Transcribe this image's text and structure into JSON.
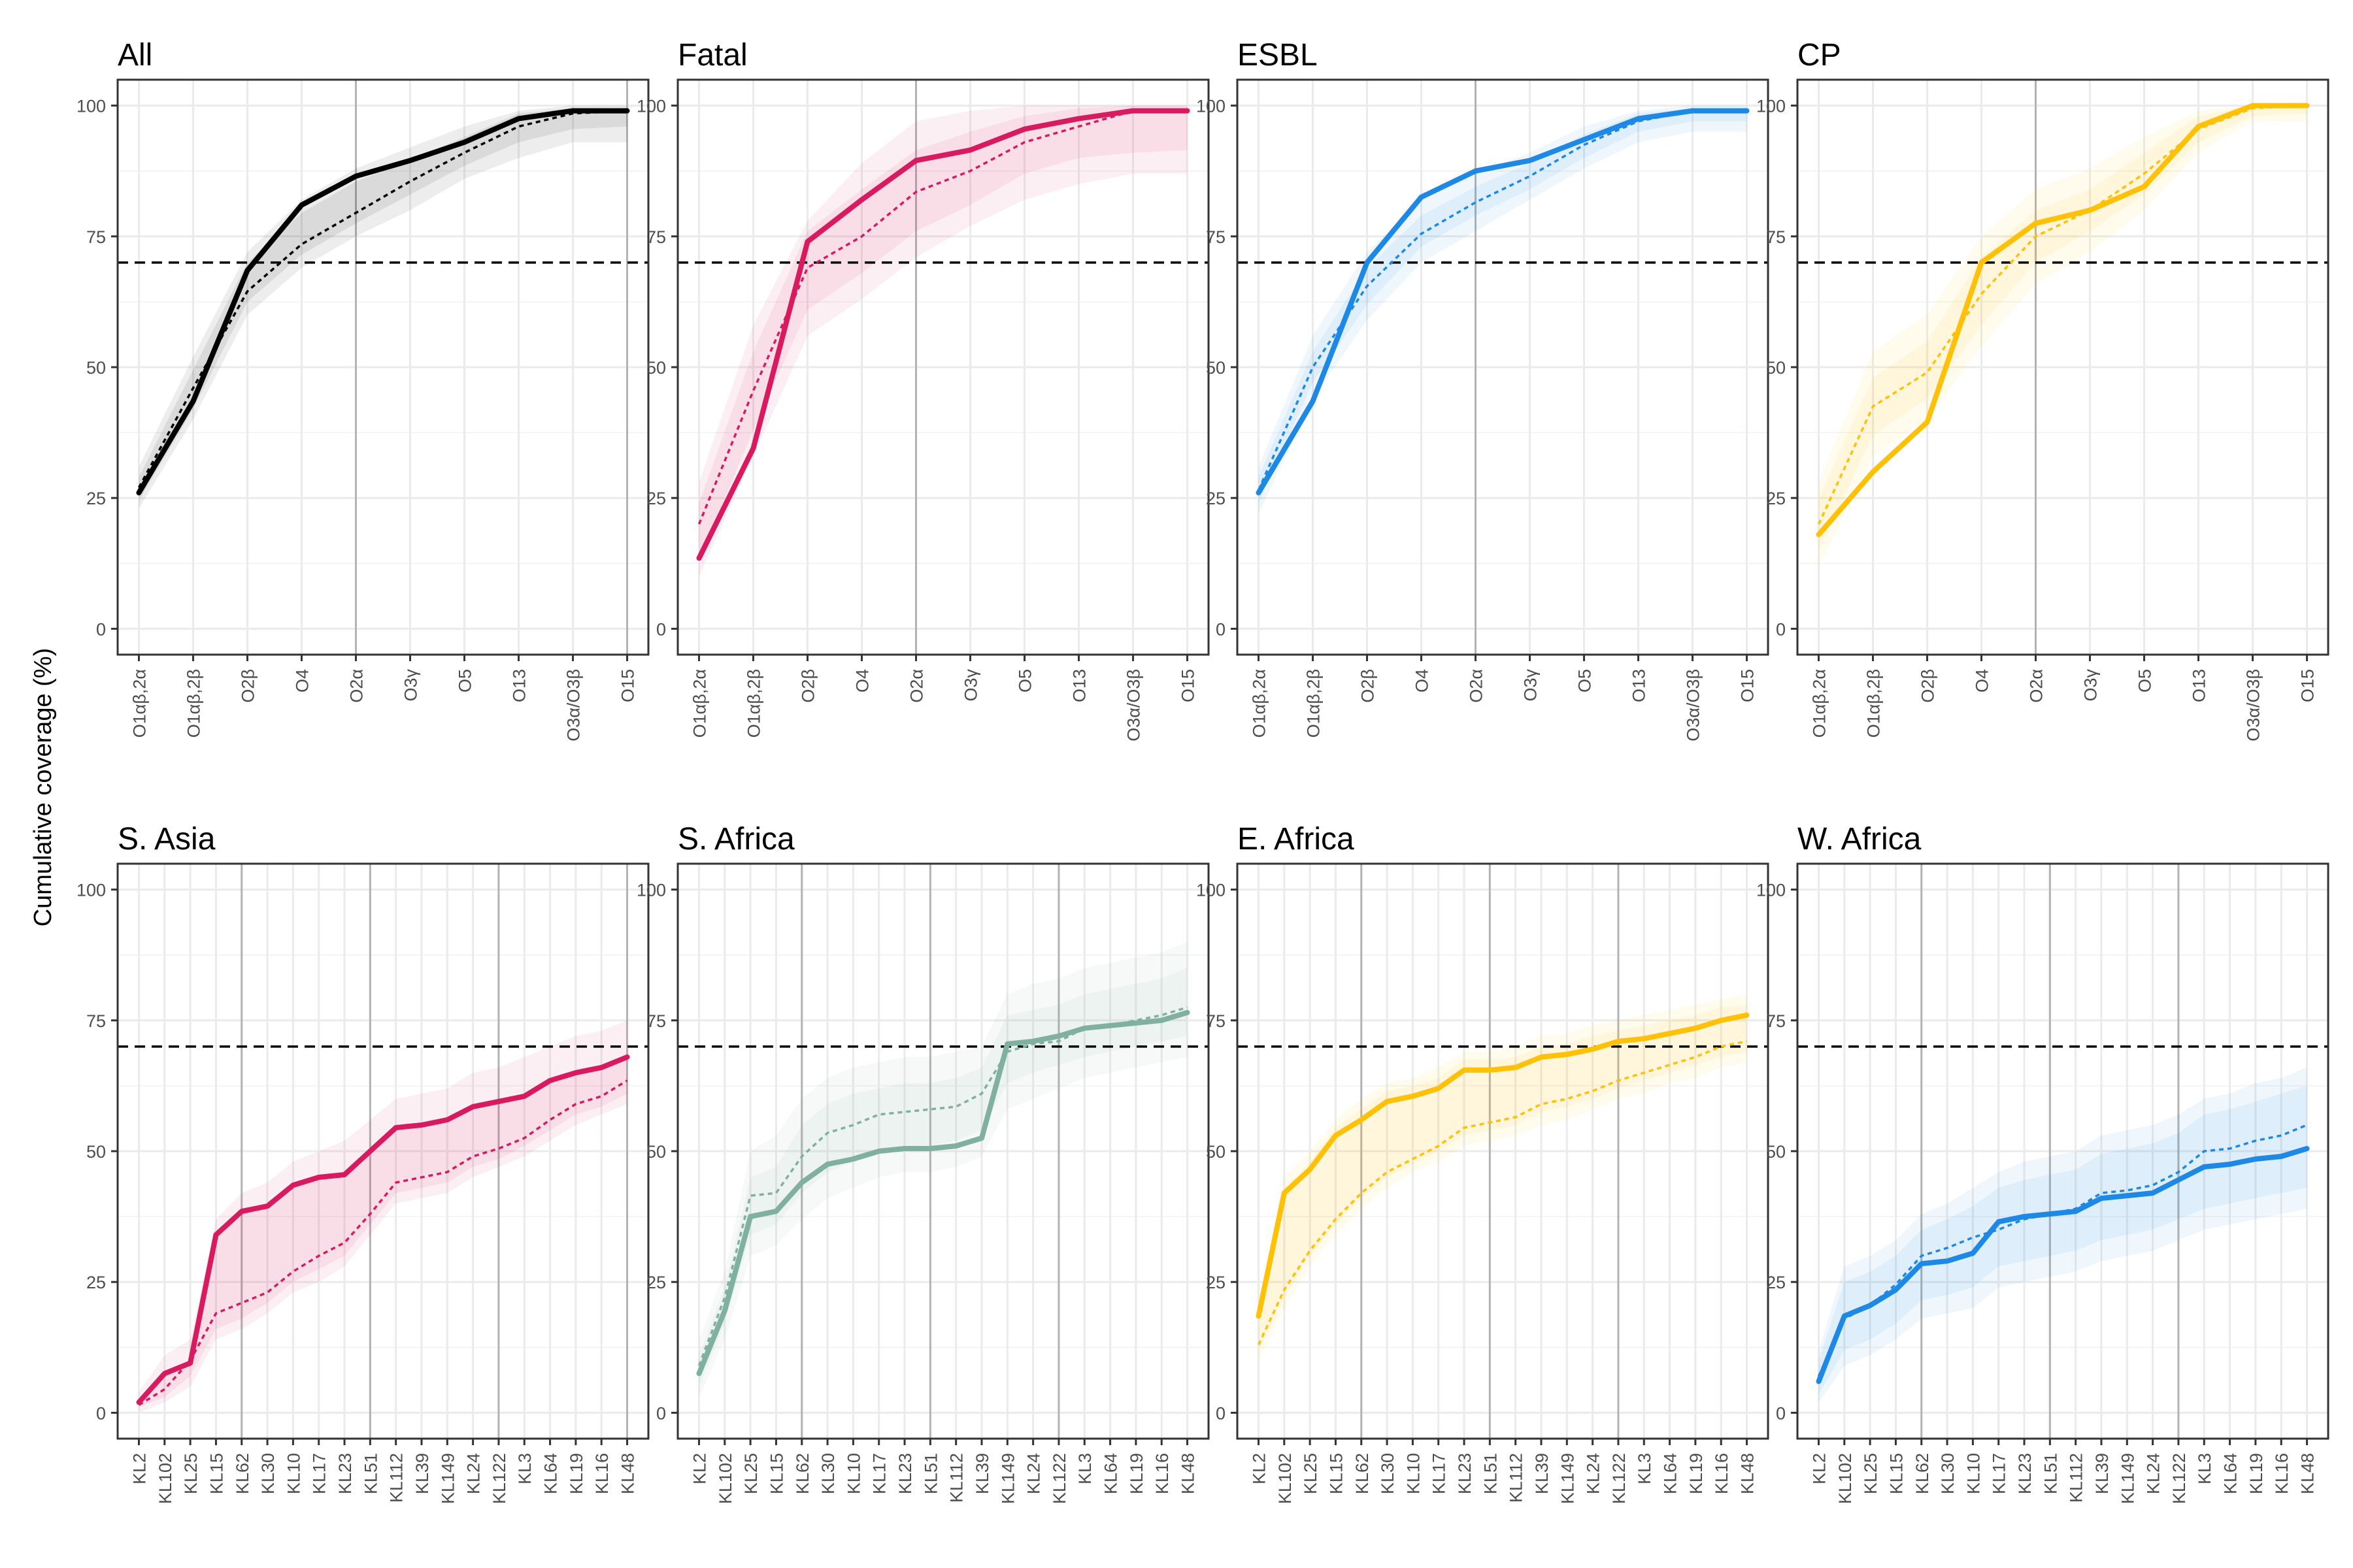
{
  "ylabel": "Cumulative coverage (%)",
  "reference_line": 70,
  "colors": {
    "black": "#000000",
    "magenta": "#d81b60",
    "blue": "#1e88e5",
    "yellow": "#ffc107",
    "teal": "#7fb0a0",
    "grid": "#ebebeb",
    "vline": "#b3b3b3"
  },
  "chart_data": [
    {
      "type": "line",
      "title": "All",
      "color": "#000000",
      "categories": [
        "O1αβ,2α",
        "O1αβ,2β",
        "O2β",
        "O4",
        "O2α",
        "O3γ",
        "O5",
        "O13",
        "O3α/O3β",
        "O15"
      ],
      "ylim": [
        0,
        100
      ],
      "yticks": [
        0,
        25,
        50,
        75,
        100
      ],
      "vlines": [
        "O2α",
        "O15"
      ],
      "grid": true,
      "series": [
        {
          "style": "solid",
          "values": [
            26,
            43.5,
            68.5,
            81,
            86.5,
            89.5,
            93,
            97.5,
            99,
            99
          ]
        },
        {
          "style": "dashed",
          "values": [
            27,
            46,
            64.5,
            73.5,
            79.5,
            85.5,
            91,
            96,
            98.5,
            99
          ]
        }
      ],
      "band_outer": {
        "lower": [
          23,
          40,
          60,
          69,
          75,
          80,
          86,
          90,
          93,
          93
        ],
        "upper": [
          31,
          52,
          72,
          82,
          88,
          92,
          96,
          99,
          100,
          100
        ]
      },
      "band_inner": {
        "lower": [
          24.5,
          42,
          62.5,
          71.5,
          77.5,
          83,
          88.5,
          93,
          95.5,
          96
        ],
        "upper": [
          29,
          49.5,
          70,
          79.5,
          85.5,
          89.5,
          94,
          98.5,
          99.5,
          99.5
        ]
      }
    },
    {
      "type": "line",
      "title": "Fatal",
      "color": "#d81b60",
      "categories": [
        "O1αβ,2α",
        "O1αβ,2β",
        "O2β",
        "O4",
        "O2α",
        "O3γ",
        "O5",
        "O13",
        "O3α/O3β",
        "O15"
      ],
      "ylim": [
        0,
        100
      ],
      "yticks": [
        0,
        25,
        50,
        75,
        100
      ],
      "vlines": [
        "O2α"
      ],
      "grid": true,
      "series": [
        {
          "style": "solid",
          "values": [
            13.5,
            34.5,
            74,
            82,
            89.5,
            91.5,
            95.5,
            97.5,
            99,
            99
          ]
        },
        {
          "style": "dashed",
          "values": [
            20,
            45.5,
            69,
            75,
            83.5,
            87.5,
            93,
            96,
            99,
            99
          ]
        }
      ],
      "band_outer": {
        "lower": [
          10,
          33,
          56,
          63,
          71,
          77,
          82,
          85,
          87,
          87
        ],
        "upper": [
          28,
          58,
          78,
          89,
          97,
          99,
          100,
          100,
          100,
          100
        ]
      },
      "band_inner": {
        "lower": [
          13,
          38,
          61,
          68,
          76,
          81,
          87,
          90,
          91,
          91.5
        ],
        "upper": [
          24,
          53,
          76,
          84,
          91.5,
          95,
          98,
          99.5,
          100,
          100
        ]
      }
    },
    {
      "type": "line",
      "title": "ESBL",
      "color": "#1e88e5",
      "categories": [
        "O1αβ,2α",
        "O1αβ,2β",
        "O2β",
        "O4",
        "O2α",
        "O3γ",
        "O5",
        "O13",
        "O3α/O3β",
        "O15"
      ],
      "ylim": [
        0,
        100
      ],
      "yticks": [
        0,
        25,
        50,
        75,
        100
      ],
      "vlines": [
        "O2α"
      ],
      "grid": true,
      "series": [
        {
          "style": "solid",
          "values": [
            26,
            43.5,
            70,
            82.5,
            87.5,
            89.5,
            93.5,
            97.5,
            99,
            99
          ]
        },
        {
          "style": "dashed",
          "values": [
            26.5,
            50,
            65.5,
            75.5,
            81.5,
            86.5,
            92.5,
            97,
            99,
            99
          ]
        }
      ],
      "band_outer": {
        "lower": [
          22,
          44,
          59,
          70,
          76,
          82,
          88,
          93,
          95,
          95
        ],
        "upper": [
          31,
          56,
          72,
          82,
          87,
          91,
          96,
          99,
          100,
          100
        ]
      },
      "band_inner": {
        "lower": [
          24,
          47,
          62,
          73,
          79,
          84,
          90,
          95,
          97,
          97
        ],
        "upper": [
          29,
          53,
          69,
          79,
          84.5,
          89,
          94.5,
          98.5,
          99.5,
          99.5
        ]
      }
    },
    {
      "type": "line",
      "title": "CP",
      "color": "#ffc107",
      "categories": [
        "O1αβ,2α",
        "O1αβ,2β",
        "O2β",
        "O4",
        "O2α",
        "O3γ",
        "O5",
        "O13",
        "O3α/O3β",
        "O15"
      ],
      "ylim": [
        0,
        100
      ],
      "yticks": [
        0,
        25,
        50,
        75,
        100
      ],
      "vlines": [
        "O2α"
      ],
      "grid": true,
      "series": [
        {
          "style": "solid",
          "values": [
            18,
            30,
            39.5,
            70,
            77.5,
            80,
            84.5,
            96,
            100,
            100
          ]
        },
        {
          "style": "dashed",
          "values": [
            20,
            42.5,
            49,
            64,
            75,
            80,
            87,
            95.5,
            99.5,
            100
          ]
        }
      ],
      "band_outer": {
        "lower": [
          12,
          33,
          40,
          54,
          66,
          72,
          80,
          91,
          97,
          97
        ],
        "upper": [
          28,
          53,
          60,
          75,
          84,
          88,
          94,
          99,
          100,
          100
        ]
      },
      "band_inner": {
        "lower": [
          15,
          37,
          44,
          58,
          70,
          76,
          83,
          93,
          98,
          98.5
        ],
        "upper": [
          25,
          48,
          55,
          71,
          80,
          84,
          91,
          98,
          100,
          100
        ]
      }
    },
    {
      "type": "line",
      "title": "S. Asia",
      "color": "#d81b60",
      "categories": [
        "KL2",
        "KL102",
        "KL25",
        "KL15",
        "KL62",
        "KL30",
        "KL10",
        "KL17",
        "KL23",
        "KL51",
        "KL112",
        "KL39",
        "KL149",
        "KL24",
        "KL122",
        "KL3",
        "KL64",
        "KL19",
        "KL16",
        "KL48"
      ],
      "ylim": [
        0,
        100
      ],
      "yticks": [
        0,
        25,
        50,
        75,
        100
      ],
      "vlines": [
        "KL62",
        "KL51",
        "KL122",
        "KL48"
      ],
      "grid": true,
      "series": [
        {
          "style": "solid",
          "values": [
            2,
            7.5,
            9.5,
            34,
            38.5,
            39.5,
            43.5,
            45,
            45.5,
            50,
            54.5,
            55,
            56,
            58.5,
            59.5,
            60.5,
            63.5,
            65,
            66,
            68
          ]
        },
        {
          "style": "dashed",
          "values": [
            1.5,
            4.5,
            10,
            19,
            21,
            23,
            27,
            30,
            32.5,
            38,
            44,
            45,
            46,
            49,
            50.5,
            52.5,
            56,
            59,
            60.5,
            63.5
          ]
        }
      ],
      "band_outer": {
        "lower": [
          0,
          2,
          5,
          14,
          16,
          19,
          23,
          25,
          28,
          34,
          40,
          41,
          42,
          45,
          47,
          49,
          52,
          55,
          57,
          59
        ],
        "upper": [
          4,
          11,
          14,
          37,
          42,
          44,
          48,
          50,
          52,
          56,
          60,
          61,
          62,
          65,
          66,
          68,
          70,
          72,
          73,
          75
        ]
      },
      "band_inner": {
        "lower": [
          1,
          3,
          7,
          16,
          18,
          21,
          25,
          27.5,
          30,
          36,
          42,
          43,
          44,
          47,
          48.5,
          51,
          54,
          57,
          58.5,
          61
        ]
      }
    },
    {
      "type": "line",
      "title": "S. Africa",
      "color": "#7fb0a0",
      "categories": [
        "KL2",
        "KL102",
        "KL25",
        "KL15",
        "KL62",
        "KL30",
        "KL10",
        "KL17",
        "KL23",
        "KL51",
        "KL112",
        "KL39",
        "KL149",
        "KL24",
        "KL122",
        "KL3",
        "KL64",
        "KL19",
        "KL16",
        "KL48"
      ],
      "ylim": [
        0,
        100
      ],
      "yticks": [
        0,
        25,
        50,
        75,
        100
      ],
      "vlines": [
        "KL62",
        "KL51",
        "KL122"
      ],
      "grid": true,
      "series": [
        {
          "style": "solid",
          "values": [
            7.5,
            19.5,
            37.5,
            38.5,
            44,
            47.5,
            48.5,
            50,
            50.5,
            50.5,
            51,
            52.5,
            70.5,
            71,
            72,
            73.5,
            74,
            74.5,
            75,
            76.5
          ]
        },
        {
          "style": "dashed",
          "values": [
            9,
            22,
            41.5,
            42,
            49,
            53.5,
            55,
            57,
            57.5,
            58,
            58.5,
            61,
            69,
            70.5,
            71,
            73.5,
            74,
            75,
            76,
            77.5
          ]
        }
      ],
      "band_outer": {
        "lower": [
          3,
          14,
          30,
          32,
          37,
          41,
          43,
          45,
          46,
          46,
          47,
          49,
          58,
          60,
          62,
          64,
          65,
          66,
          67,
          68
        ],
        "upper": [
          14,
          27,
          50,
          53,
          60,
          64,
          66,
          67,
          68,
          68,
          69,
          70,
          80,
          82,
          83,
          85,
          86,
          87,
          88,
          90
        ]
      },
      "band_inner": {
        "lower": [
          5,
          17,
          34,
          36,
          42,
          46,
          48,
          50,
          50.5,
          51,
          52,
          54,
          63,
          65,
          66.5,
          68,
          69,
          70,
          71,
          72
        ],
        "upper": [
          11,
          24,
          45,
          47,
          55,
          59,
          61,
          62,
          63,
          63,
          64,
          66,
          76,
          77,
          78,
          80,
          81,
          82,
          83,
          85
        ]
      }
    },
    {
      "type": "line",
      "title": "E. Africa",
      "color": "#ffc107",
      "categories": [
        "KL2",
        "KL102",
        "KL25",
        "KL15",
        "KL62",
        "KL30",
        "KL10",
        "KL17",
        "KL23",
        "KL51",
        "KL112",
        "KL39",
        "KL149",
        "KL24",
        "KL122",
        "KL3",
        "KL64",
        "KL19",
        "KL16",
        "KL48"
      ],
      "ylim": [
        0,
        100
      ],
      "yticks": [
        0,
        25,
        50,
        75,
        100
      ],
      "vlines": [
        "KL62",
        "KL51",
        "KL122"
      ],
      "grid": true,
      "series": [
        {
          "style": "solid",
          "values": [
            18.5,
            42,
            46.5,
            53,
            56,
            59.5,
            60.5,
            62,
            65.5,
            65.5,
            66,
            68,
            68.5,
            69.5,
            71,
            71.5,
            72.5,
            73.5,
            75,
            76
          ]
        },
        {
          "style": "dashed",
          "values": [
            13,
            23.5,
            31,
            37,
            42,
            46,
            48.5,
            51,
            54.5,
            55.5,
            56.5,
            59,
            60,
            61.5,
            63.5,
            65,
            66.5,
            68,
            70,
            71
          ]
        }
      ],
      "band_outer": {
        "lower": [
          10,
          20,
          28,
          34,
          39,
          43,
          46,
          48,
          51,
          52,
          53,
          55,
          56,
          58,
          60,
          61,
          63,
          64,
          66,
          67
        ],
        "upper": [
          22,
          45,
          50,
          56,
          60,
          63,
          64,
          66,
          69,
          69,
          70,
          72,
          72.5,
          74,
          75,
          76,
          77,
          78,
          79,
          80
        ]
      },
      "band_inner": {
        "lower": [
          12,
          22,
          30,
          36,
          41,
          45,
          47.5,
          50,
          53,
          54,
          55,
          57.5,
          58.5,
          60,
          62,
          63.5,
          65,
          66.5,
          68,
          69
        ],
        "upper": [
          20,
          43,
          48,
          54.5,
          58,
          61.5,
          62.5,
          64,
          67.5,
          67.5,
          68,
          70,
          70.5,
          72,
          73,
          74,
          75,
          76,
          77.5,
          78
        ]
      }
    },
    {
      "type": "line",
      "title": "W. Africa",
      "color": "#1e88e5",
      "categories": [
        "KL2",
        "KL102",
        "KL25",
        "KL15",
        "KL62",
        "KL30",
        "KL10",
        "KL17",
        "KL23",
        "KL51",
        "KL112",
        "KL39",
        "KL149",
        "KL24",
        "KL122",
        "KL3",
        "KL64",
        "KL19",
        "KL16",
        "KL48"
      ],
      "ylim": [
        0,
        100
      ],
      "yticks": [
        0,
        25,
        50,
        75,
        100
      ],
      "vlines": [
        "KL62",
        "KL51",
        "KL122"
      ],
      "grid": true,
      "series": [
        {
          "style": "solid",
          "values": [
            6,
            18.5,
            20.5,
            23.5,
            28.5,
            29,
            30.5,
            36.5,
            37.5,
            38,
            38.5,
            41,
            41.5,
            42,
            44.5,
            47,
            47.5,
            48.5,
            49,
            50.5
          ]
        },
        {
          "style": "dashed",
          "values": [
            7,
            18,
            20.5,
            24.5,
            30,
            31.5,
            33.5,
            35,
            37,
            38,
            39,
            42,
            42.5,
            43.5,
            46,
            50,
            50.5,
            52,
            53,
            55
          ]
        }
      ],
      "band_outer": {
        "lower": [
          2,
          9,
          11,
          14,
          18,
          19,
          20,
          24,
          25,
          26,
          27,
          29,
          30,
          31,
          33,
          35,
          36,
          37,
          38,
          39
        ],
        "upper": [
          12,
          28,
          30,
          33,
          38,
          40,
          43,
          46,
          48,
          49,
          50,
          53,
          54,
          55,
          57,
          60,
          61,
          63,
          64,
          66
        ]
      },
      "band_inner": {
        "lower": [
          3.5,
          12,
          14,
          17,
          21.5,
          22.5,
          24,
          28,
          29,
          30,
          31,
          33,
          34,
          35,
          37,
          39,
          40,
          41,
          42,
          43
        ],
        "upper": [
          10,
          25,
          27,
          30,
          35,
          37,
          39.5,
          43,
          44.5,
          45.5,
          46.5,
          49.5,
          50.5,
          51.5,
          53.5,
          57,
          58,
          59.5,
          61,
          62.5
        ]
      }
    }
  ]
}
